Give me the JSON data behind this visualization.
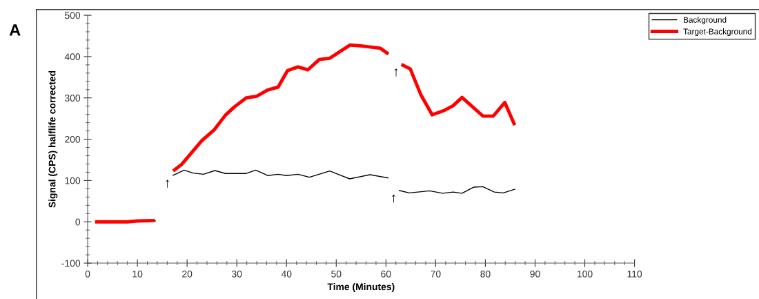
{
  "chart_data": {
    "type": "line",
    "xlabel": "Time (Minutes)",
    "ylabel": "Signal (CPS) halflife corrected",
    "xlim": [
      0,
      110
    ],
    "xticks": [
      0,
      10,
      20,
      30,
      40,
      50,
      60,
      70,
      80,
      90,
      100,
      110
    ],
    "ylim": [
      -100,
      500
    ],
    "yticks": [
      -100,
      0,
      100,
      200,
      300,
      400,
      500
    ],
    "legend": "top right",
    "grid": false,
    "marker": "none",
    "line_style": "solid",
    "series": [
      {
        "name": "Background",
        "color": "#000000",
        "x": [
          1.5,
          13.7,
          15.5,
          17.1,
          19.4,
          21.2,
          23.3,
          25.6,
          27.7,
          31.9,
          33.8,
          36.2,
          38.3,
          40.0,
          42.3,
          44.6,
          48.7,
          52.7,
          56.8,
          60.5,
          61.5,
          62.6,
          64.7,
          68.8,
          71.4,
          73.5,
          75.3,
          77.7,
          79.5,
          81.8,
          83.6,
          86.0
        ],
        "values": [
          0,
          2,
          null,
          112,
          125,
          118,
          115,
          124,
          117,
          117,
          125,
          112,
          115,
          112,
          115,
          108,
          123,
          104,
          114,
          106,
          null,
          76,
          70,
          75,
          69,
          72,
          69,
          84,
          85,
          72,
          70,
          79
        ]
      },
      {
        "name": "Target-Background",
        "color": "#ff0000",
        "x": [
          1.5,
          5,
          8,
          10,
          13.5,
          15.5,
          17.2,
          18.9,
          23.0,
          25.4,
          27.7,
          29.5,
          31.9,
          34.0,
          36.2,
          38.3,
          40.2,
          42.3,
          44.3,
          46.6,
          48.7,
          52.8,
          54.9,
          58.9,
          60.5,
          61.5,
          63.1,
          64.9,
          67.0,
          69.3,
          71.6,
          73.5,
          75.3,
          79.5,
          81.6,
          83.9,
          85.9
        ],
        "values": [
          0,
          0,
          0,
          2,
          3,
          null,
          123,
          139,
          197,
          222,
          258,
          278,
          300,
          304,
          319,
          326,
          366,
          375,
          368,
          393,
          396,
          428,
          426,
          420,
          406,
          null,
          381,
          370,
          308,
          259,
          269,
          281,
          301,
          256,
          256,
          289,
          234
        ]
      }
    ],
    "annotations": [
      "A",
      {
        "text": "↑",
        "x": 17.1,
        "y": 112
      },
      {
        "text": "↑",
        "x": 63.1,
        "y": 381
      },
      {
        "text": "↑",
        "x": 62.6,
        "y": 76
      }
    ]
  }
}
